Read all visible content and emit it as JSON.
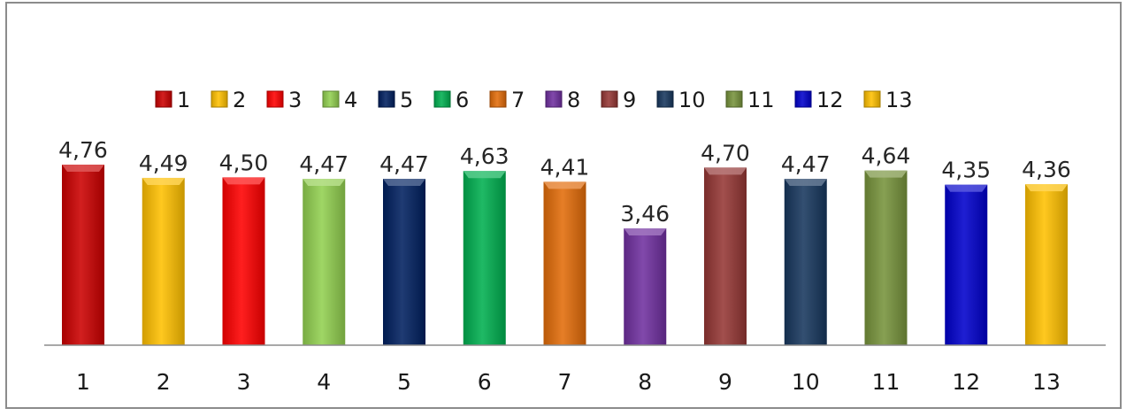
{
  "chart_data": {
    "type": "bar",
    "categories": [
      "1",
      "2",
      "3",
      "4",
      "5",
      "6",
      "7",
      "8",
      "9",
      "10",
      "11",
      "12",
      "13"
    ],
    "values": [
      4.76,
      4.49,
      4.5,
      4.47,
      4.47,
      4.63,
      4.41,
      3.46,
      4.7,
      4.47,
      4.64,
      4.35,
      4.36
    ],
    "data_labels": [
      "4,76",
      "4,49",
      "4,50",
      "4,47",
      "4,47",
      "4,63",
      "4,41",
      "3,46",
      "4,70",
      "4,47",
      "4,64",
      "4,35",
      "4,36"
    ],
    "colors": [
      "#cc0000",
      "#ffc000",
      "#ff0000",
      "#92d050",
      "#002060",
      "#00b050",
      "#e36c09",
      "#7030a0",
      "#953735",
      "#17375e",
      "#77933c",
      "#0000cc",
      "#ffc000"
    ],
    "legend": [
      "1",
      "2",
      "3",
      "4",
      "5",
      "6",
      "7",
      "8",
      "9",
      "10",
      "11",
      "12",
      "13"
    ],
    "legend_position": "top",
    "title": "",
    "xlabel": "",
    "ylabel": "",
    "ylim": [
      0,
      5
    ],
    "grid": false
  }
}
